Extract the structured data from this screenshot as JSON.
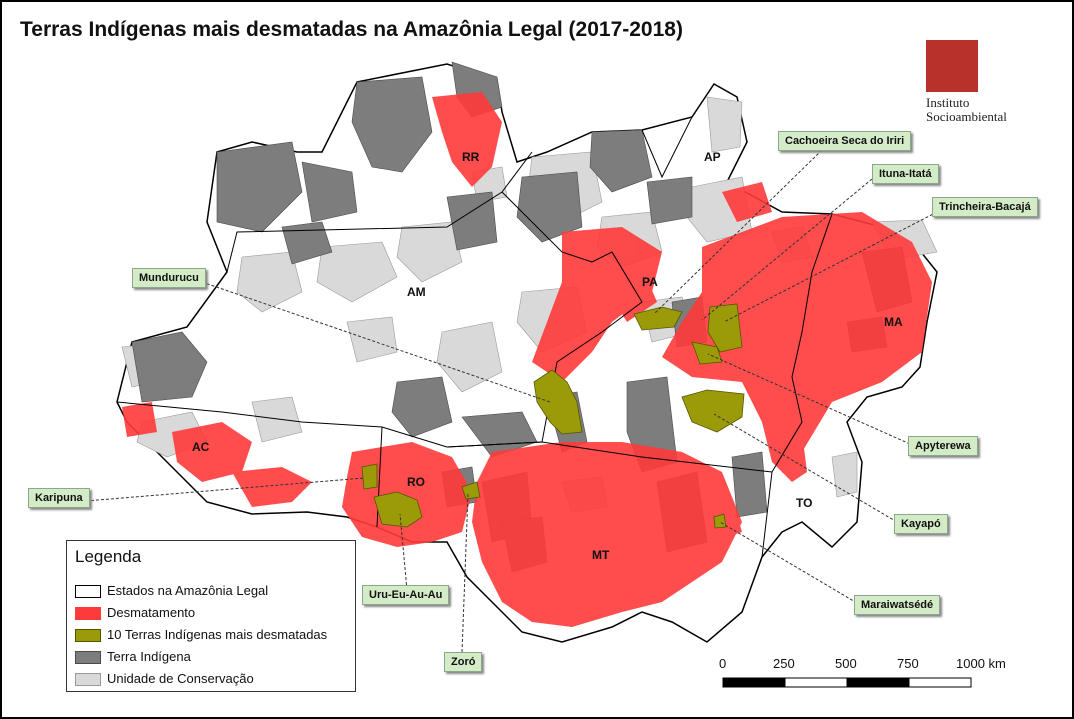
{
  "title": "Terras Indígenas mais desmatadas na Amazônia Legal (2017-2018)",
  "logo": {
    "line1": "Instituto",
    "line2": "Socioambiental"
  },
  "colors": {
    "deforestation": "#ff3a3a",
    "top10": "#9b9b0a",
    "terra_indigena": "#7d7d7d",
    "conservacao": "#d9d9d9",
    "state_fill": "#ffffff",
    "callout_bg": "#d4ebc8"
  },
  "states": [
    "RR",
    "AP",
    "AM",
    "PA",
    "MA",
    "AC",
    "RO",
    "MT",
    "TO"
  ],
  "callouts": [
    "Cachoeira Seca do Iriri",
    "Ituna-Itatá",
    "Trincheira-Bacajá",
    "Mundurucu",
    "Apyterewa",
    "Karipuna",
    "Kayapó",
    "Uru-Eu-Au-Au",
    "Maraiwatsédé",
    "Zoró"
  ],
  "legend": {
    "title": "Legenda",
    "items": [
      {
        "label": "Estados na Amazônia Legal",
        "color": "#ffffff"
      },
      {
        "label": "Desmatamento",
        "color": "#ff3a3a"
      },
      {
        "label": "10 Terras Indígenas mais desmatadas",
        "color": "#9b9b0a"
      },
      {
        "label": "Terra Indígena",
        "color": "#7d7d7d"
      },
      {
        "label": "Unidade de Conservação",
        "color": "#d9d9d9"
      }
    ]
  },
  "scale": {
    "labels": [
      "0",
      "250",
      "500",
      "750",
      "1000 km"
    ]
  }
}
